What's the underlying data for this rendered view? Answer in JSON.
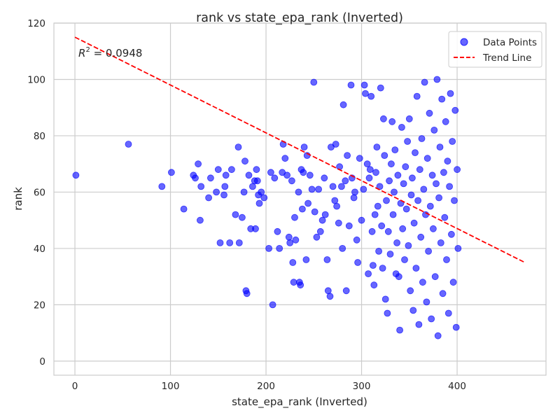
{
  "chart_data": {
    "type": "scatter",
    "title": "rank vs state_epa_rank (Inverted)",
    "xlabel": "state_epa_rank (Inverted)",
    "ylabel": "rank",
    "xlim": [
      -22,
      493
    ],
    "ylim": [
      -5,
      120
    ],
    "xticks": [
      0,
      100,
      200,
      300,
      400
    ],
    "yticks": [
      0,
      20,
      40,
      60,
      80,
      100,
      120
    ],
    "grid": true,
    "legend_position": "top-right",
    "colors": {
      "points": "#0000ff",
      "trend": "#ff0000",
      "grid": "#cccccc",
      "frame": "#cccccc"
    },
    "series": [
      {
        "name": "Data Points",
        "kind": "scatter",
        "color": "#0000ff",
        "points": [
          [
            1,
            66
          ],
          [
            56,
            77
          ],
          [
            91,
            62
          ],
          [
            101,
            67
          ],
          [
            114,
            54
          ],
          [
            124,
            66
          ],
          [
            126,
            65
          ],
          [
            129,
            70
          ],
          [
            131,
            50
          ],
          [
            132,
            62
          ],
          [
            140,
            58
          ],
          [
            142,
            65
          ],
          [
            148,
            60
          ],
          [
            150,
            68
          ],
          [
            152,
            42
          ],
          [
            156,
            59
          ],
          [
            157,
            62
          ],
          [
            158,
            66
          ],
          [
            162,
            42
          ],
          [
            164,
            68
          ],
          [
            168,
            52
          ],
          [
            171,
            76
          ],
          [
            172,
            42
          ],
          [
            175,
            51
          ],
          [
            177,
            60
          ],
          [
            178,
            71
          ],
          [
            179,
            25
          ],
          [
            180,
            24
          ],
          [
            182,
            66
          ],
          [
            184,
            47
          ],
          [
            186,
            62
          ],
          [
            188,
            64
          ],
          [
            189,
            47
          ],
          [
            190,
            68
          ],
          [
            191,
            64
          ],
          [
            192,
            59
          ],
          [
            193,
            56
          ],
          [
            195,
            60
          ],
          [
            198,
            58
          ],
          [
            203,
            40
          ],
          [
            205,
            67
          ],
          [
            207,
            20
          ],
          [
            209,
            65
          ],
          [
            212,
            46
          ],
          [
            214,
            40
          ],
          [
            217,
            67
          ],
          [
            218,
            77
          ],
          [
            220,
            72
          ],
          [
            222,
            66
          ],
          [
            224,
            44
          ],
          [
            225,
            42
          ],
          [
            227,
            64
          ],
          [
            228,
            35
          ],
          [
            229,
            28
          ],
          [
            230,
            51
          ],
          [
            231,
            43
          ],
          [
            234,
            60
          ],
          [
            235,
            28
          ],
          [
            236,
            27
          ],
          [
            237,
            68
          ],
          [
            238,
            54
          ],
          [
            239,
            67
          ],
          [
            240,
            76
          ],
          [
            242,
            36
          ],
          [
            243,
            73
          ],
          [
            244,
            56
          ],
          [
            246,
            66
          ],
          [
            248,
            61
          ],
          [
            250,
            99
          ],
          [
            251,
            53
          ],
          [
            253,
            44
          ],
          [
            255,
            61
          ],
          [
            257,
            46
          ],
          [
            259,
            50
          ],
          [
            261,
            65
          ],
          [
            262,
            52
          ],
          [
            264,
            36
          ],
          [
            265,
            25
          ],
          [
            267,
            23
          ],
          [
            268,
            76
          ],
          [
            270,
            62
          ],
          [
            272,
            57
          ],
          [
            273,
            77
          ],
          [
            274,
            55
          ],
          [
            276,
            49
          ],
          [
            277,
            69
          ],
          [
            279,
            62
          ],
          [
            280,
            40
          ],
          [
            281,
            91
          ],
          [
            283,
            64
          ],
          [
            284,
            25
          ],
          [
            285,
            73
          ],
          [
            287,
            48
          ],
          [
            289,
            98
          ],
          [
            290,
            65
          ],
          [
            292,
            58
          ],
          [
            293,
            60
          ],
          [
            295,
            43
          ],
          [
            296,
            35
          ],
          [
            298,
            72
          ],
          [
            300,
            50
          ],
          [
            302,
            61
          ],
          [
            303,
            98
          ],
          [
            304,
            95
          ],
          [
            306,
            70
          ],
          [
            307,
            31
          ],
          [
            308,
            65
          ],
          [
            309,
            68
          ],
          [
            310,
            94
          ],
          [
            311,
            46
          ],
          [
            312,
            34
          ],
          [
            313,
            27
          ],
          [
            314,
            52
          ],
          [
            315,
            67
          ],
          [
            316,
            76
          ],
          [
            317,
            55
          ],
          [
            318,
            39
          ],
          [
            319,
            62
          ],
          [
            320,
            97
          ],
          [
            321,
            48
          ],
          [
            322,
            33
          ],
          [
            323,
            86
          ],
          [
            324,
            73
          ],
          [
            325,
            22
          ],
          [
            326,
            57
          ],
          [
            327,
            17
          ],
          [
            328,
            46
          ],
          [
            329,
            64
          ],
          [
            330,
            38
          ],
          [
            331,
            70
          ],
          [
            332,
            85
          ],
          [
            333,
            52
          ],
          [
            334,
            60
          ],
          [
            335,
            75
          ],
          [
            336,
            31
          ],
          [
            337,
            42
          ],
          [
            338,
            66
          ],
          [
            339,
            30
          ],
          [
            340,
            11
          ],
          [
            341,
            56
          ],
          [
            342,
            83
          ],
          [
            343,
            47
          ],
          [
            344,
            63
          ],
          [
            345,
            36
          ],
          [
            346,
            69
          ],
          [
            347,
            54
          ],
          [
            348,
            78
          ],
          [
            349,
            41
          ],
          [
            350,
            86
          ],
          [
            351,
            25
          ],
          [
            352,
            59
          ],
          [
            353,
            65
          ],
          [
            354,
            18
          ],
          [
            355,
            49
          ],
          [
            356,
            74
          ],
          [
            357,
            33
          ],
          [
            358,
            94
          ],
          [
            359,
            57
          ],
          [
            360,
            13
          ],
          [
            361,
            68
          ],
          [
            362,
            44
          ],
          [
            363,
            79
          ],
          [
            364,
            28
          ],
          [
            365,
            61
          ],
          [
            366,
            99
          ],
          [
            367,
            52
          ],
          [
            368,
            21
          ],
          [
            369,
            72
          ],
          [
            370,
            39
          ],
          [
            371,
            88
          ],
          [
            372,
            55
          ],
          [
            373,
            15
          ],
          [
            374,
            66
          ],
          [
            375,
            47
          ],
          [
            376,
            82
          ],
          [
            377,
            30
          ],
          [
            378,
            63
          ],
          [
            379,
            100
          ],
          [
            380,
            9
          ],
          [
            381,
            58
          ],
          [
            382,
            76
          ],
          [
            383,
            42
          ],
          [
            384,
            93
          ],
          [
            385,
            24
          ],
          [
            386,
            67
          ],
          [
            387,
            51
          ],
          [
            388,
            85
          ],
          [
            389,
            36
          ],
          [
            390,
            71
          ],
          [
            391,
            17
          ],
          [
            392,
            62
          ],
          [
            393,
            95
          ],
          [
            394,
            45
          ],
          [
            395,
            78
          ],
          [
            396,
            28
          ],
          [
            397,
            57
          ],
          [
            398,
            89
          ],
          [
            399,
            12
          ],
          [
            400,
            68
          ],
          [
            401,
            40
          ]
        ]
      },
      {
        "name": "Trend Line",
        "kind": "line",
        "color": "#ff0000",
        "style": "dashed",
        "points": [
          [
            0,
            115
          ],
          [
            471,
            35
          ]
        ]
      }
    ],
    "annotations": [
      {
        "text_prefix": "R",
        "superscript": "2",
        "text_suffix": " = 0.0948"
      }
    ]
  }
}
